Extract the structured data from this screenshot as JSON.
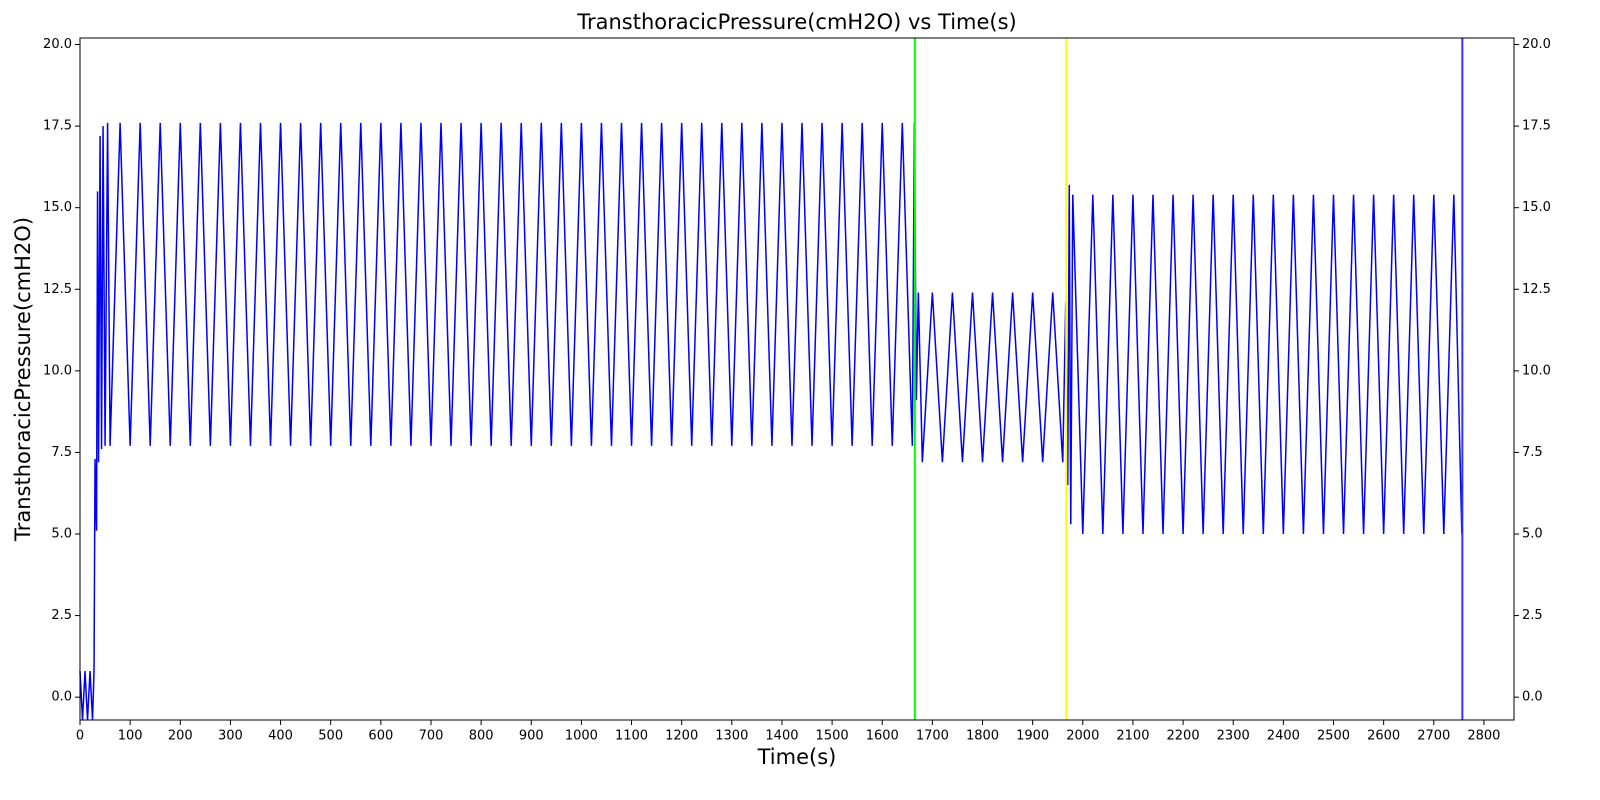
{
  "chart_data": {
    "type": "line",
    "title": "TransthoracicPressure(cmH2O) vs Time(s)",
    "x_label": "Time(s)",
    "y_label": "TransthoracicPressure(cmH2O)",
    "xlim": [
      0,
      2860
    ],
    "ylim": [
      -0.7,
      20.2
    ],
    "xticks": [
      0,
      100,
      200,
      300,
      400,
      500,
      600,
      700,
      800,
      900,
      1000,
      1100,
      1200,
      1300,
      1400,
      1500,
      1600,
      1700,
      1800,
      1900,
      2000,
      2100,
      2200,
      2300,
      2400,
      2500,
      2600,
      2700,
      2800
    ],
    "yticks": [
      {
        "value": 0,
        "label": "0.0"
      },
      2.5,
      {
        "value": 5,
        "label": "5.0"
      },
      7.5,
      {
        "value": 10,
        "label": "10.0"
      },
      12.5,
      {
        "value": 15,
        "label": "15.0"
      },
      17.5,
      {
        "value": 20,
        "label": "20.0"
      }
    ],
    "right_axis_ticks": true,
    "grid": false,
    "series": [
      {
        "color": "#0000ff",
        "x": [
          0,
          5,
          10,
          15,
          20,
          25,
          28,
          30,
          33,
          35,
          37,
          40,
          43,
          46,
          50,
          55,
          60,
          80,
          100,
          120,
          140,
          160,
          180,
          200,
          220,
          240,
          260,
          280,
          300,
          320,
          340,
          360,
          380,
          400,
          420,
          440,
          460,
          480,
          500,
          520,
          540,
          560,
          580,
          600,
          620,
          640,
          660,
          680,
          700,
          720,
          740,
          760,
          780,
          800,
          820,
          840,
          860,
          880,
          900,
          920,
          940,
          960,
          980,
          1000,
          1020,
          1040,
          1060,
          1080,
          1100,
          1120,
          1140,
          1160,
          1180,
          1200,
          1220,
          1240,
          1260,
          1280,
          1300,
          1320,
          1340,
          1360,
          1380,
          1400,
          1420,
          1440,
          1460,
          1480,
          1500,
          1520,
          1540,
          1560,
          1580,
          1600,
          1620,
          1640,
          1660,
          1664,
          1668,
          1672,
          1680,
          1700,
          1720,
          1740,
          1760,
          1780,
          1800,
          1820,
          1840,
          1860,
          1880,
          1900,
          1920,
          1940,
          1960,
          1966,
          1970,
          1973,
          1976,
          1980,
          2000,
          2020,
          2040,
          2060,
          2080,
          2100,
          2120,
          2140,
          2160,
          2180,
          2200,
          2220,
          2240,
          2260,
          2280,
          2300,
          2320,
          2340,
          2360,
          2380,
          2400,
          2420,
          2440,
          2460,
          2480,
          2500,
          2520,
          2540,
          2560,
          2580,
          2600,
          2620,
          2640,
          2660,
          2680,
          2700,
          2720,
          2740,
          2756
        ],
        "values": [
          0.8,
          -0.7,
          0.8,
          -0.7,
          0.8,
          -0.7,
          0.8,
          7.3,
          5.1,
          15.5,
          7.2,
          17.2,
          7.6,
          17.5,
          7.7,
          17.6,
          7.7,
          17.6,
          7.7,
          17.6,
          7.7,
          17.6,
          7.7,
          17.6,
          7.7,
          17.6,
          7.7,
          17.6,
          7.7,
          17.6,
          7.7,
          17.6,
          7.7,
          17.6,
          7.7,
          17.6,
          7.7,
          17.6,
          7.7,
          17.6,
          7.7,
          17.6,
          7.7,
          17.6,
          7.7,
          17.6,
          7.7,
          17.6,
          7.7,
          17.6,
          7.7,
          17.6,
          7.7,
          17.6,
          7.7,
          17.6,
          7.7,
          17.6,
          7.7,
          17.6,
          7.7,
          17.6,
          7.7,
          17.6,
          7.7,
          17.6,
          7.7,
          17.6,
          7.7,
          17.6,
          7.7,
          17.6,
          7.7,
          17.6,
          7.7,
          17.6,
          7.7,
          17.6,
          7.7,
          17.6,
          7.7,
          17.6,
          7.7,
          17.6,
          7.7,
          17.6,
          7.7,
          17.6,
          7.7,
          17.6,
          7.7,
          17.6,
          7.7,
          17.6,
          7.7,
          17.6,
          7.7,
          17.6,
          9.1,
          12.4,
          7.2,
          12.4,
          7.2,
          12.4,
          7.2,
          12.4,
          7.2,
          12.4,
          7.2,
          12.4,
          7.2,
          12.4,
          7.2,
          12.4,
          7.2,
          12.1,
          6.5,
          15.7,
          5.3,
          15.4,
          5.0,
          15.4,
          5.0,
          15.4,
          5.0,
          15.4,
          5.0,
          15.4,
          5.0,
          15.4,
          5.0,
          15.4,
          5.0,
          15.4,
          5.0,
          15.4,
          5.0,
          15.4,
          5.0,
          15.4,
          5.0,
          15.4,
          5.0,
          15.4,
          5.0,
          15.4,
          5.0,
          15.4,
          5.0,
          15.4,
          5.0,
          15.4,
          5.0,
          15.4,
          5.0,
          15.4,
          5.0,
          15.4,
          5.0
        ]
      }
    ],
    "vlines": [
      {
        "x": 1665,
        "color": "#00ff00"
      },
      {
        "x": 1967,
        "color": "#ffff00"
      },
      {
        "x": 2757,
        "color": "#3333ff"
      }
    ]
  }
}
